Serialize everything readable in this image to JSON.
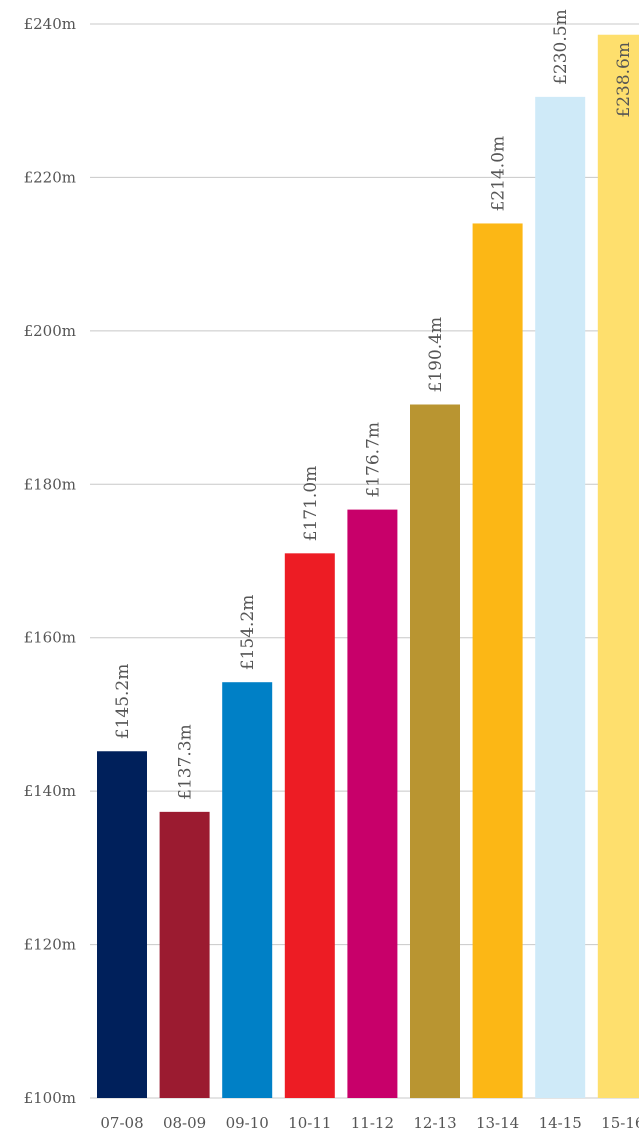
{
  "chart_data": {
    "type": "bar",
    "categories": [
      "07-08",
      "08-09",
      "09-10",
      "10-11",
      "11-12",
      "12-13",
      "13-14",
      "14-15",
      "15-16"
    ],
    "values": [
      145.2,
      137.3,
      154.2,
      171.0,
      176.7,
      190.4,
      214.0,
      230.5,
      238.6
    ],
    "data_labels": [
      "£145.2m",
      "£137.3m",
      "£154.2m",
      "£171.0m",
      "£176.7m",
      "£190.4m",
      "£214.0m",
      "£230.5m",
      "£238.6m"
    ],
    "bar_colors": [
      "#00205b",
      "#9b1b30",
      "#0080c6",
      "#ed1c24",
      "#c8006a",
      "#b99531",
      "#fcb715",
      "#cfeaf8",
      "#fedf6d"
    ],
    "y_ticks": [
      100,
      120,
      140,
      160,
      180,
      200,
      220,
      240
    ],
    "y_tick_labels": [
      "£100m",
      "£120m",
      "£140m",
      "£160m",
      "£180m",
      "£200m",
      "£220m",
      "£240m"
    ],
    "ylim": [
      100,
      240
    ],
    "grid": true,
    "legend": false,
    "title": "",
    "xlabel": "",
    "ylabel": ""
  }
}
